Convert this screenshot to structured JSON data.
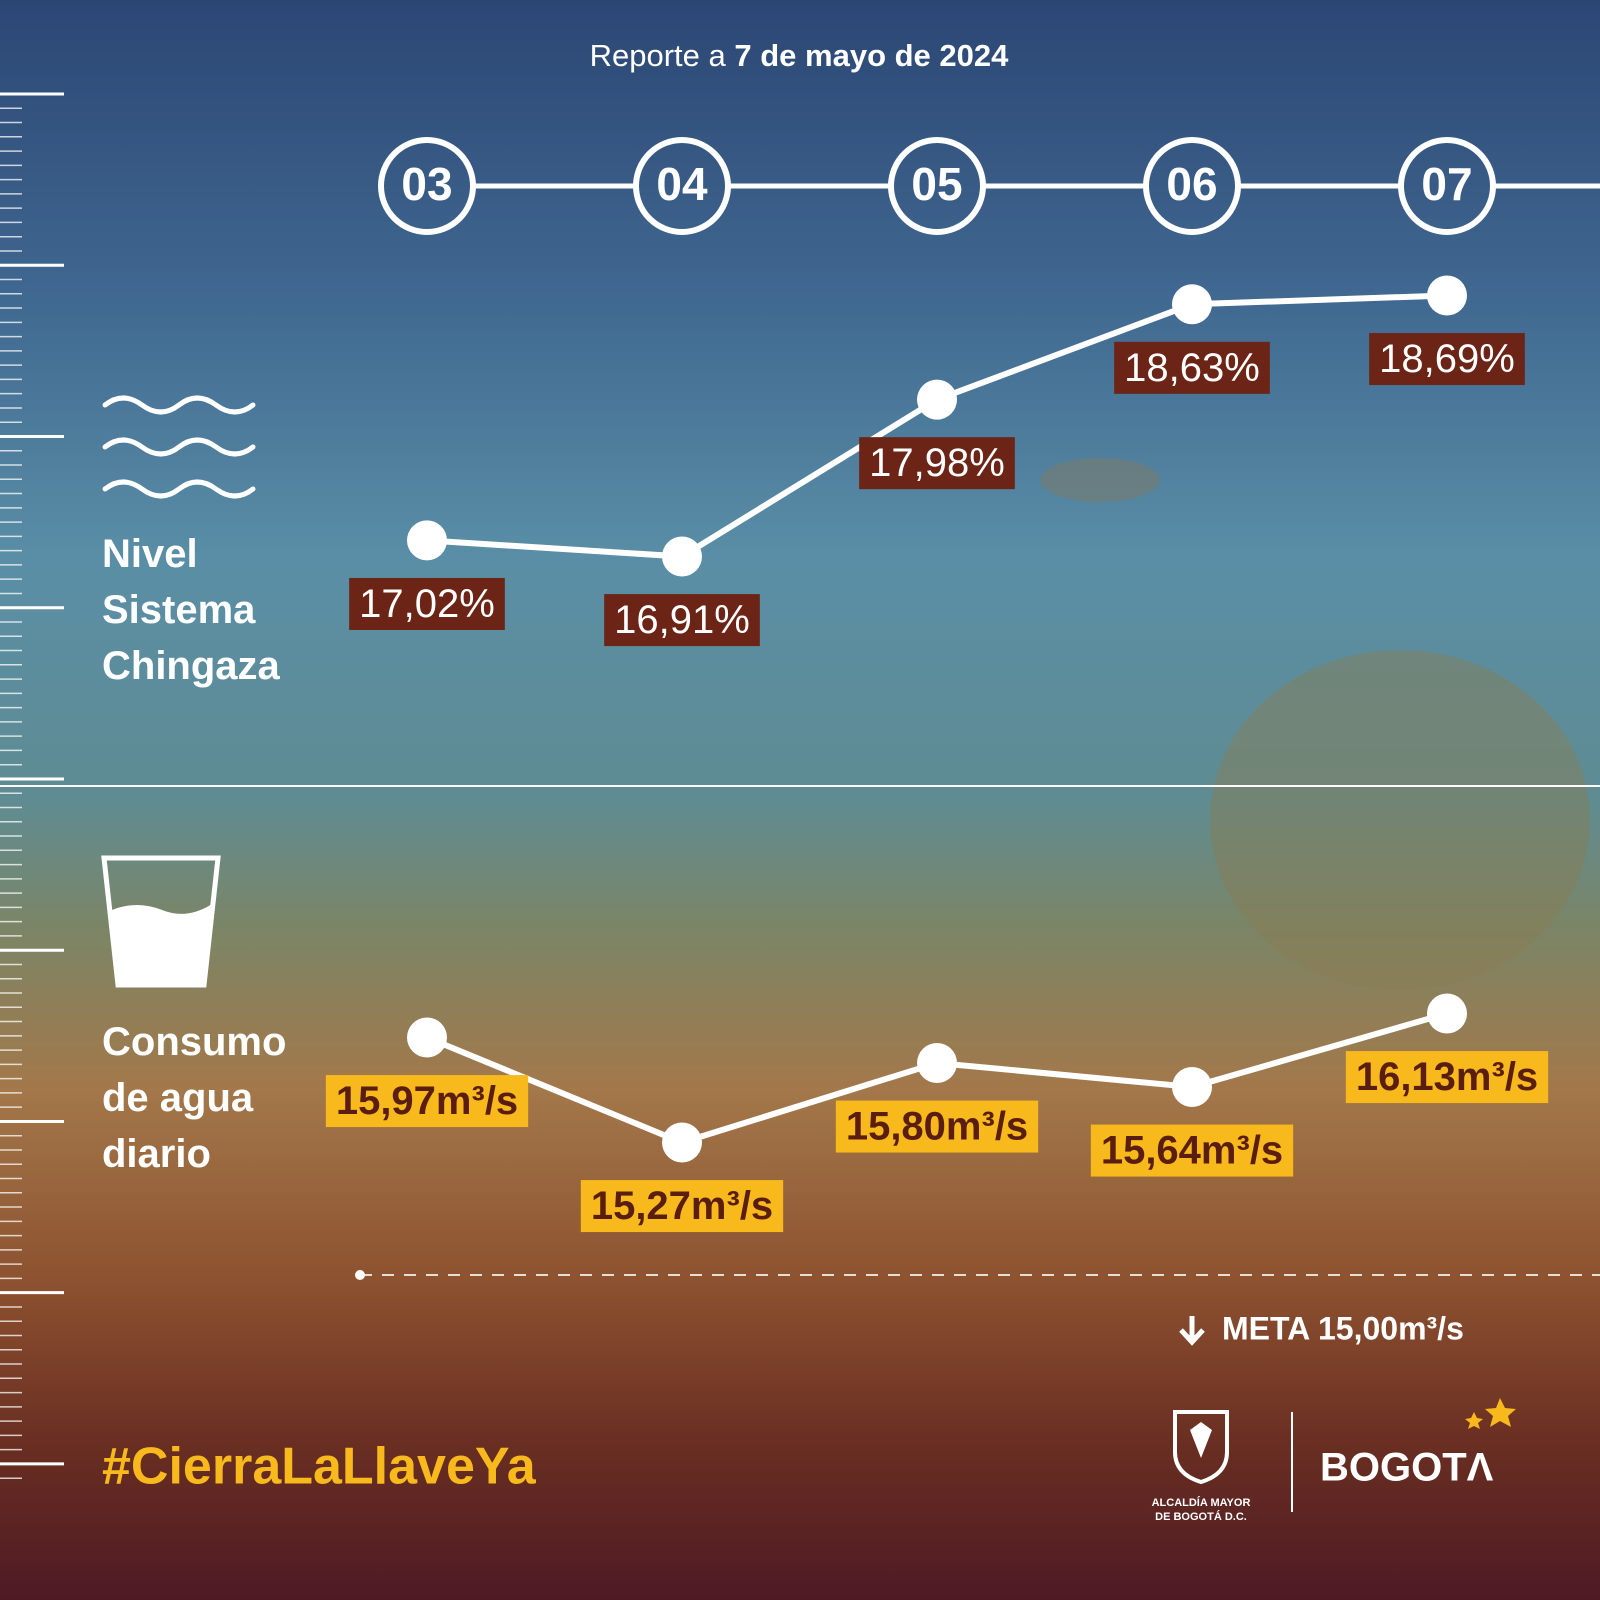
{
  "chart_data": {
    "type": "line",
    "title": "Reporte a 7 de mayo de 2024",
    "categories": [
      "03",
      "04",
      "05",
      "06",
      "07"
    ],
    "ylim": [
      16,
      19
    ],
    "y2lim": [
      15,
      16.5
    ],
    "series": [
      {
        "name": "Nivel Sistema Chingaza",
        "color": "#ffffff",
        "values": [
          17.02,
          16.91,
          17.98,
          18.63,
          18.69
        ],
        "value_labels": [
          "17,02%",
          "16,91%",
          "17,98%",
          "18,63%",
          "18,69%"
        ],
        "label_background": "#6b2415",
        "label_color": "#ffffff"
      },
      {
        "name": "Consumo de agua diario",
        "color": "#ffffff",
        "axis": "y2",
        "values": [
          15.97,
          15.27,
          15.8,
          15.64,
          16.13
        ],
        "value_labels": [
          "15,97m³/s",
          "15,27m³/s",
          "15,80m³/s",
          "15,64m³/s",
          "16,13m³/s"
        ],
        "label_background": "#f7b91c",
        "label_color": "#5a1e10"
      }
    ],
    "annotations": [
      "META 15,00m³/s"
    ]
  },
  "footer": {
    "hashtag": "#CierraLaLlaveYa",
    "logo_text": [
      "ALCALDÍA MAYOR",
      "DE BOGOTÁ D.C."
    ],
    "brand": "BOGOTΛ"
  }
}
